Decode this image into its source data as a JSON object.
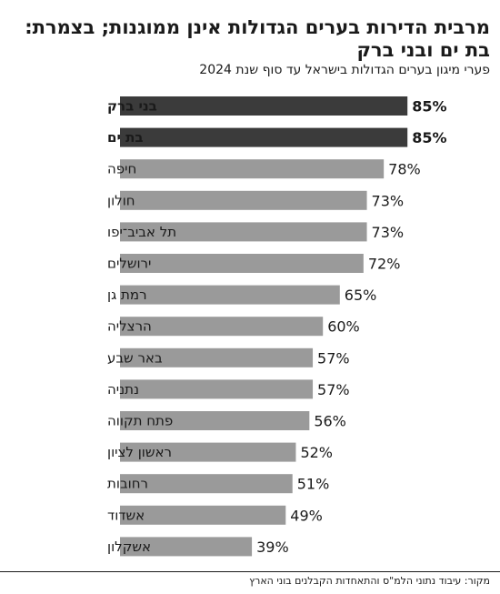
{
  "title": "מרבית הדירות בערים הגדולות אינן ממוגנות; בצמרת: בת ים ובני ברק",
  "subtitle": "פערי מיגון בערים הגדולות בישראל עד סוף שנת 2024",
  "source": "מקור: עיבוד נתוני הלמ\"ס והתאחדות הקבלנים בוני הארץ",
  "colors": {
    "highlight": "#3b3b3b",
    "bar": "#9a9a9a",
    "text": "#1a1a1a"
  },
  "chart_data": {
    "type": "bar",
    "orientation": "horizontal",
    "unit": "%",
    "xlim": [
      0,
      100
    ],
    "grid": false,
    "legend": "none",
    "categories": [
      "בני ברק",
      "בת ים",
      "חיפה",
      "חולון",
      "תל אביב־יפו",
      "ירושלים",
      "רמת גן",
      "הרצליה",
      "באר שבע",
      "נתניה",
      "פתח תקווה",
      "ראשון לציון",
      "רחובות",
      "אשדוד",
      "אשקלון"
    ],
    "values": [
      85,
      85,
      78,
      73,
      73,
      72,
      65,
      60,
      57,
      57,
      56,
      52,
      51,
      49,
      39
    ],
    "highlighted": [
      "בני ברק",
      "בת ים"
    ],
    "value_labels": [
      "85%",
      "85%",
      "78%",
      "73%",
      "73%",
      "72%",
      "65%",
      "60%",
      "57%",
      "57%",
      "56%",
      "52%",
      "51%",
      "49%",
      "39%"
    ]
  }
}
